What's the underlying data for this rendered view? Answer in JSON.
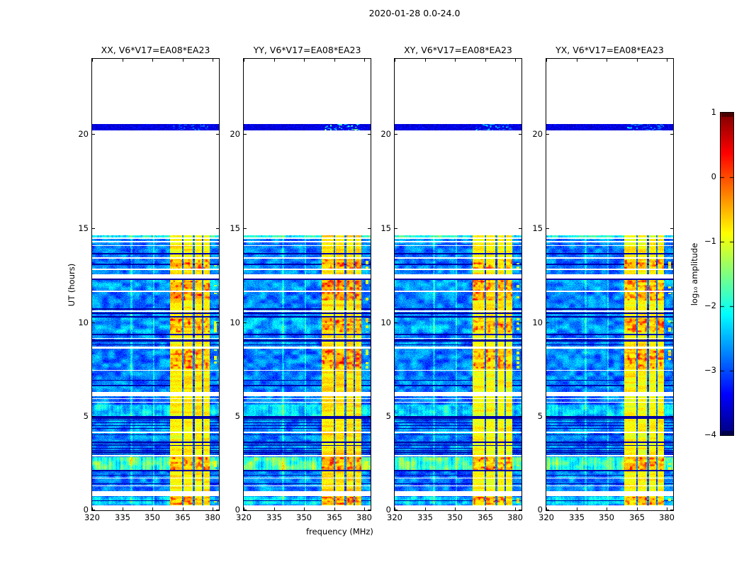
{
  "chart_data": {
    "type": "heatmap",
    "title": "2020-01-28 0.0-24.0",
    "xlabel": "frequency (MHz)",
    "ylabel": "UT (hours)",
    "x_range": [
      320,
      383
    ],
    "x_ticks": [
      320,
      335,
      350,
      365,
      380
    ],
    "y_range": [
      0,
      24
    ],
    "y_ticks": [
      0,
      5,
      10,
      15,
      20
    ],
    "panels": [
      {
        "label": "XX, V6*V17=EA08*EA23",
        "seed": 3,
        "rfi_strength": 1.0,
        "cal_speckle": 0.3
      },
      {
        "label": "YY, V6*V17=EA08*EA23",
        "seed": 7,
        "rfi_strength": 1.05,
        "cal_speckle": 1.0
      },
      {
        "label": "XY, V6*V17=EA08*EA23",
        "seed": 11,
        "rfi_strength": 0.9,
        "cal_speckle": 0.5
      },
      {
        "label": "YX, V6*V17=EA08*EA23",
        "seed": 13,
        "rfi_strength": 0.93,
        "cal_speckle": 0.5
      }
    ],
    "colorbar": {
      "label": "log₁₀ amplitude",
      "tick_values": [
        1,
        0,
        -1,
        -2,
        -3,
        -4
      ],
      "tick_labels": [
        "1",
        "0",
        "−1",
        "−2",
        "−3",
        "−4"
      ],
      "vmin": -4,
      "vmax": 1,
      "colormap": "jet"
    },
    "data_blocks": [
      [
        0.25,
        14.62
      ],
      [
        20.2,
        20.55
      ]
    ],
    "white_rows": [
      [
        14.44,
        14.5
      ],
      [
        14.24,
        14.3
      ],
      [
        14.04,
        14.09
      ],
      [
        13.38,
        13.44
      ],
      [
        12.79,
        12.85
      ],
      [
        12.33,
        12.54
      ],
      [
        11.62,
        11.68
      ],
      [
        10.55,
        10.62
      ],
      [
        9.12,
        9.17
      ],
      [
        8.6,
        8.72
      ],
      [
        7.42,
        7.47
      ],
      [
        6.08,
        6.29
      ],
      [
        5.92,
        5.97
      ],
      [
        5.72,
        5.77
      ],
      [
        4.11,
        4.18
      ],
      [
        2.87,
        2.95
      ],
      [
        1.7,
        1.74
      ],
      [
        1.28,
        1.33
      ],
      [
        0.74,
        1.03
      ]
    ],
    "black_rows_full": [
      [
        13.61,
        13.66
      ],
      [
        12.26,
        12.31
      ],
      [
        10.45,
        10.52
      ],
      [
        10.25,
        10.32
      ],
      [
        9.3,
        9.37
      ],
      [
        8.96,
        9.08
      ],
      [
        4.86,
        5.0
      ],
      [
        3.58,
        3.66
      ],
      [
        3.42,
        3.48
      ],
      [
        2.08,
        2.16
      ]
    ],
    "black_rows_bg": [
      [
        13.05,
        13.12
      ],
      [
        10.68,
        10.73
      ],
      [
        8.78,
        8.83
      ],
      [
        6.91,
        6.95
      ],
      [
        6.61,
        6.65
      ],
      [
        4.77,
        4.81
      ],
      [
        4.62,
        4.66
      ],
      [
        4.47,
        4.51
      ],
      [
        4.34,
        4.38
      ],
      [
        4.0,
        4.05
      ],
      [
        3.52,
        3.56
      ],
      [
        3.27,
        3.31
      ],
      [
        3.17,
        3.21
      ],
      [
        3.07,
        3.11
      ],
      [
        2.97,
        3.01
      ],
      [
        1.86,
        1.9
      ],
      [
        1.38,
        1.43
      ],
      [
        0.5,
        0.54
      ]
    ],
    "bright_rows": [
      [
        2.16,
        2.84,
        1.05
      ],
      [
        5.02,
        5.6,
        0.5
      ],
      [
        14.5,
        14.62,
        0.75
      ],
      [
        0.3,
        0.72,
        0.45
      ],
      [
        9.45,
        10.2,
        0.2
      ],
      [
        11.7,
        12.26,
        0.15
      ]
    ],
    "orange_clusters": [
      [
        0.3,
        0.72
      ],
      [
        2.16,
        2.84
      ],
      [
        7.55,
        8.55
      ],
      [
        9.45,
        10.22
      ],
      [
        11.15,
        12.26
      ],
      [
        12.85,
        13.35
      ]
    ],
    "rfi_outer": [
      358.6,
      378.3
    ],
    "rfi_bands": [
      [
        358.6,
        364.7
      ],
      [
        365.4,
        370.1
      ],
      [
        370.9,
        374.6
      ],
      [
        375.4,
        378.3
      ]
    ],
    "rfi_edge": [
      380.5,
      382.0
    ],
    "vert_lines": [
      339.5,
      350.5
    ],
    "background_color": "#ffffff"
  }
}
